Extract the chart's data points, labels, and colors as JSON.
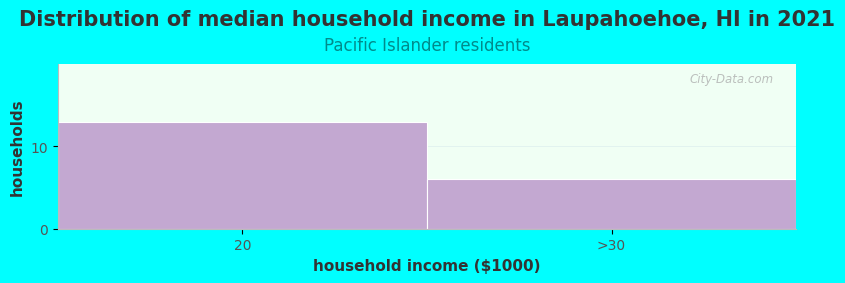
{
  "title": "Distribution of median household income in Laupahoehoe, HI in 2021",
  "subtitle": "Pacific Islander residents",
  "xlabel": "household income ($1000)",
  "ylabel": "households",
  "background_color": "#00FFFF",
  "plot_bg_color": "#F0FFF4",
  "bar_color": "#C3A8D1",
  "bar_edge_color": "#FFFFFF",
  "categories": [
    "20",
    ">30"
  ],
  "values": [
    13,
    6
  ],
  "ylim": [
    0,
    20
  ],
  "yticks": [
    0,
    10
  ],
  "title_fontsize": 15,
  "subtitle_fontsize": 12,
  "subtitle_color": "#008B8B",
  "axis_label_fontsize": 11,
  "tick_fontsize": 10,
  "watermark_text": "City-Data.com"
}
